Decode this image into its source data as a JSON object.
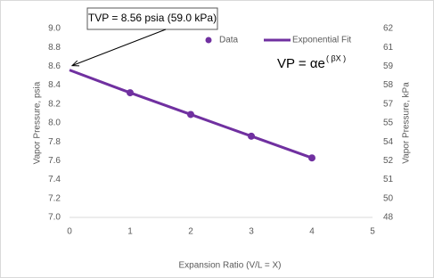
{
  "chart_data": {
    "type": "scatter",
    "x_label": "Expansion Ratio (V/L = X)",
    "y_label": "Vapor Pressure, psia",
    "y2_label": "Vapor Pressure, kPa",
    "annotation": "TVP = 8.56 psia (59.0 kPa)",
    "formula": "VP = αe",
    "formula_exponent": "( βX )",
    "xlim": [
      0,
      5
    ],
    "xticks": [
      0,
      1,
      2,
      3,
      4,
      5
    ],
    "ylim": [
      7,
      9
    ],
    "yticks": [
      {
        "value": 7,
        "label": "7.0"
      },
      7.2,
      7.4,
      7.6,
      7.8,
      {
        "value": 8,
        "label": "8.0"
      },
      8.2,
      8.4,
      8.6,
      8.8,
      {
        "value": 9,
        "label": "9.0"
      }
    ],
    "y2lim": [
      48.26,
      62.05
    ],
    "y2ticks": [
      {
        "value": 48.26,
        "label": "48"
      },
      {
        "value": 49.64,
        "label": "50"
      },
      {
        "value": 51.02,
        "label": "51"
      },
      {
        "value": 52.4,
        "label": "52"
      },
      {
        "value": 53.78,
        "label": "54"
      },
      {
        "value": 55.16,
        "label": "55"
      },
      {
        "value": 56.54,
        "label": "57"
      },
      {
        "value": 57.92,
        "label": "58"
      },
      {
        "value": 59.29,
        "label": "59"
      },
      {
        "value": 60.67,
        "label": "61"
      },
      {
        "value": 62.05,
        "label": "62"
      }
    ],
    "grid": false,
    "legend": "top-right",
    "series": [
      {
        "name": "Data",
        "color": "#7030a0",
        "style": "marker",
        "x": [
          1,
          2,
          3,
          4
        ],
        "values": [
          8.32,
          8.09,
          7.86,
          7.63
        ]
      },
      {
        "name": "Exponential Fit",
        "color": "#7030a0",
        "style": "line",
        "x": [
          0,
          1,
          2,
          3,
          4
        ],
        "values": [
          8.56,
          8.32,
          8.09,
          7.86,
          7.63
        ]
      }
    ]
  }
}
